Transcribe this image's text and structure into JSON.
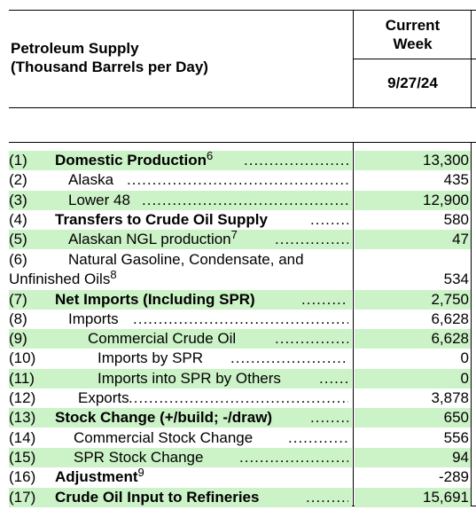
{
  "header": {
    "title_line1": "Petroleum Supply",
    "title_line2": "(Thousand Barrels per Day)",
    "col_line1": "Current",
    "col_line2": "Week",
    "date": "9/27/24"
  },
  "rows": [
    {
      "num": "(1)",
      "label": "Domestic Production",
      "sup": "6",
      "value": "13,300",
      "bold": true,
      "green": true
    },
    {
      "num": "(2)",
      "label": "Alaska",
      "sup": "",
      "value": "435",
      "bold": false,
      "green": false
    },
    {
      "num": "(3)",
      "label": "Lower 48",
      "sup": "",
      "value": "12,900",
      "bold": false,
      "green": true
    },
    {
      "num": "(4)",
      "label": "Transfers to Crude Oil Supply",
      "sup": "",
      "value": "580",
      "bold": true,
      "green": false
    },
    {
      "num": "(5)",
      "label": "Alaskan NGL production",
      "sup": "7",
      "value": "47",
      "bold": false,
      "green": true
    },
    {
      "num": "(6)",
      "label": "Natural Gasoline, Condensate, and",
      "label2": "Unfinished Oils",
      "sup": "8",
      "value": "534",
      "bold": false,
      "green": false
    },
    {
      "num": "(7)",
      "label": "Net Imports (Including SPR)",
      "sup": "",
      "value": "2,750",
      "bold": true,
      "green": true
    },
    {
      "num": "(8)",
      "label": "Imports",
      "sup": "",
      "value": "6,628",
      "bold": false,
      "green": false
    },
    {
      "num": "(9)",
      "label": "Commercial Crude Oil",
      "sup": "",
      "value": "6,628",
      "bold": false,
      "green": true
    },
    {
      "num": "(10)",
      "label": "Imports by SPR",
      "sup": "",
      "value": "0",
      "bold": false,
      "green": false
    },
    {
      "num": "(11)",
      "label": "Imports into SPR by Others",
      "sup": "",
      "value": "0",
      "bold": false,
      "green": true
    },
    {
      "num": "(12)",
      "label": "Exports",
      "sup": "",
      "value": "3,878",
      "bold": false,
      "green": false
    },
    {
      "num": "(13)",
      "label": "Stock Change (+/build; -/draw)",
      "sup": "",
      "value": "650",
      "bold": true,
      "green": true
    },
    {
      "num": "(14)",
      "label": "Commercial Stock Change",
      "sup": "",
      "value": "556",
      "bold": false,
      "green": false
    },
    {
      "num": "(15)",
      "label": "SPR Stock Change",
      "sup": "",
      "value": "94",
      "bold": false,
      "green": true
    },
    {
      "num": "(16)",
      "label": "Adjustment",
      "sup": "9",
      "value": "-289",
      "bold": true,
      "green": false
    },
    {
      "num": "(17)",
      "label": "Crude Oil Input to Refineries",
      "sup": "",
      "value": "15,691",
      "bold": true,
      "green": true
    }
  ]
}
